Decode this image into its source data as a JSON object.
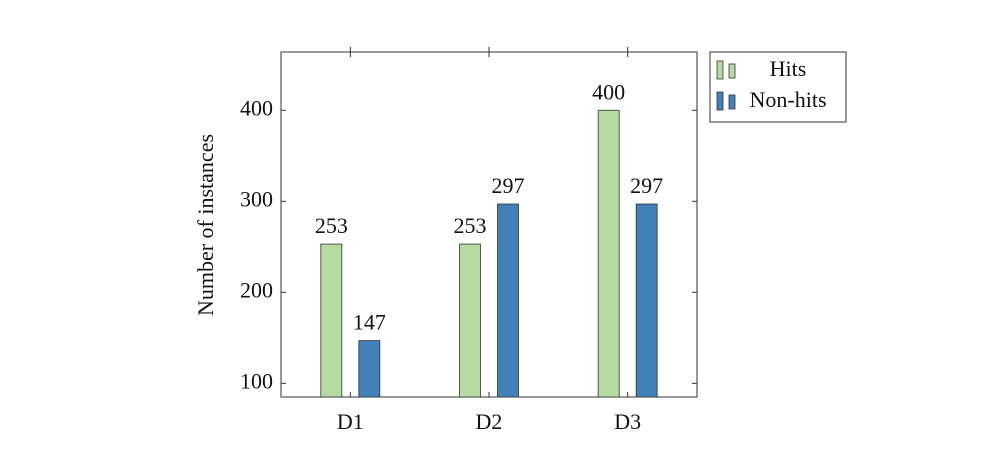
{
  "chart_data": {
    "type": "bar",
    "y_label": "Number of instances",
    "categories": [
      "D1",
      "D2",
      "D3"
    ],
    "series": [
      {
        "name": "Hits",
        "color": "#b5dba3",
        "values": [
          253,
          253,
          400
        ]
      },
      {
        "name": "Non-hits",
        "color": "#4280b8",
        "values": [
          147,
          297,
          297
        ]
      }
    ],
    "ylim": [
      85,
      464
    ],
    "yticks": [
      100,
      200,
      300,
      400
    ],
    "grid": false,
    "legend": "outside-right-top"
  }
}
